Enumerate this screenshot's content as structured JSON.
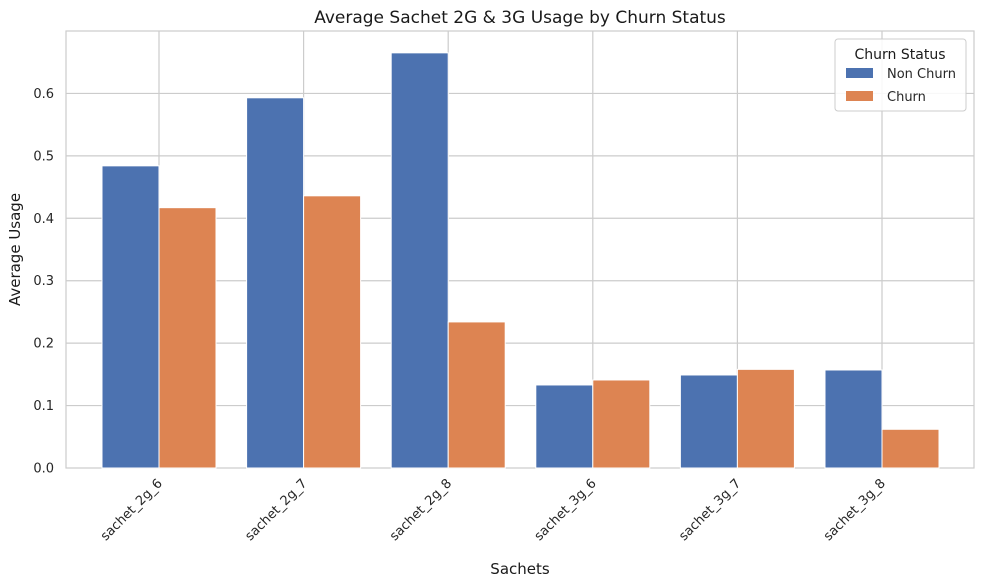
{
  "chart_data": {
    "type": "bar",
    "title": "Average Sachet 2G & 3G Usage by Churn Status",
    "xlabel": "Sachets",
    "ylabel": "Average Usage",
    "categories": [
      "sachet_2g_6",
      "sachet_2g_7",
      "sachet_2g_8",
      "sachet_3g_6",
      "sachet_3g_7",
      "sachet_3g_8"
    ],
    "series": [
      {
        "name": "Non Churn",
        "color": "#4c72b0",
        "values": [
          0.484,
          0.593,
          0.665,
          0.133,
          0.149,
          0.157
        ]
      },
      {
        "name": "Churn",
        "color": "#dd8452",
        "values": [
          0.417,
          0.436,
          0.234,
          0.141,
          0.158,
          0.062
        ]
      }
    ],
    "ylim": [
      0,
      0.7
    ],
    "yticks": [
      "0.0",
      "0.1",
      "0.2",
      "0.3",
      "0.4",
      "0.5",
      "0.6"
    ],
    "grid": true,
    "legend": {
      "title": "Churn Status",
      "position": "top-right"
    }
  }
}
